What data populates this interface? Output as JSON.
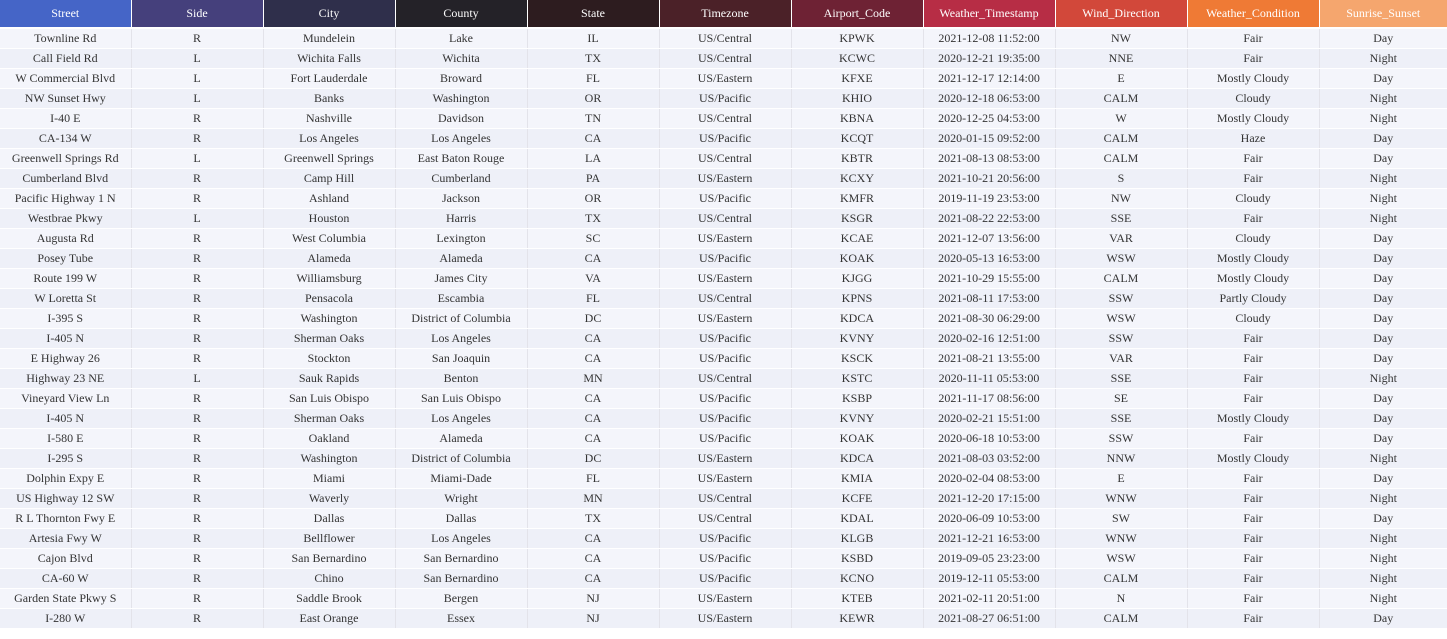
{
  "table": {
    "columns": [
      {
        "label": "Street",
        "color": "#4565c7"
      },
      {
        "label": "Side",
        "color": "#45407c"
      },
      {
        "label": "City",
        "color": "#2f2f4b"
      },
      {
        "label": "County",
        "color": "#242228"
      },
      {
        "label": "State",
        "color": "#2d1c1f"
      },
      {
        "label": "Timezone",
        "color": "#4b2128"
      },
      {
        "label": "Airport_Code",
        "color": "#6e2234"
      },
      {
        "label": "Weather_Timestamp",
        "color": "#b72d45"
      },
      {
        "label": "Wind_Direction",
        "color": "#d2483a"
      },
      {
        "label": "Weather_Condition",
        "color": "#ef7a35"
      },
      {
        "label": "Sunrise_Sunset",
        "color": "#f5a66e"
      }
    ],
    "rows": [
      [
        "Townline Rd",
        "R",
        "Mundelein",
        "Lake",
        "IL",
        "US/Central",
        "KPWK",
        "2021-12-08 11:52:00",
        "NW",
        "Fair",
        "Day"
      ],
      [
        "Call Field Rd",
        "L",
        "Wichita Falls",
        "Wichita",
        "TX",
        "US/Central",
        "KCWC",
        "2020-12-21 19:35:00",
        "NNE",
        "Fair",
        "Night"
      ],
      [
        "W Commercial Blvd",
        "L",
        "Fort Lauderdale",
        "Broward",
        "FL",
        "US/Eastern",
        "KFXE",
        "2021-12-17 12:14:00",
        "E",
        "Mostly Cloudy",
        "Day"
      ],
      [
        "NW Sunset Hwy",
        "L",
        "Banks",
        "Washington",
        "OR",
        "US/Pacific",
        "KHIO",
        "2020-12-18 06:53:00",
        "CALM",
        "Cloudy",
        "Night"
      ],
      [
        "I-40 E",
        "R",
        "Nashville",
        "Davidson",
        "TN",
        "US/Central",
        "KBNA",
        "2020-12-25 04:53:00",
        "W",
        "Mostly Cloudy",
        "Night"
      ],
      [
        "CA-134 W",
        "R",
        "Los Angeles",
        "Los Angeles",
        "CA",
        "US/Pacific",
        "KCQT",
        "2020-01-15 09:52:00",
        "CALM",
        "Haze",
        "Day"
      ],
      [
        "Greenwell Springs Rd",
        "L",
        "Greenwell Springs",
        "East Baton Rouge",
        "LA",
        "US/Central",
        "KBTR",
        "2021-08-13 08:53:00",
        "CALM",
        "Fair",
        "Day"
      ],
      [
        "Cumberland Blvd",
        "R",
        "Camp Hill",
        "Cumberland",
        "PA",
        "US/Eastern",
        "KCXY",
        "2021-10-21 20:56:00",
        "S",
        "Fair",
        "Night"
      ],
      [
        "Pacific Highway 1 N",
        "R",
        "Ashland",
        "Jackson",
        "OR",
        "US/Pacific",
        "KMFR",
        "2019-11-19 23:53:00",
        "NW",
        "Cloudy",
        "Night"
      ],
      [
        "Westbrae Pkwy",
        "L",
        "Houston",
        "Harris",
        "TX",
        "US/Central",
        "KSGR",
        "2021-08-22 22:53:00",
        "SSE",
        "Fair",
        "Night"
      ],
      [
        "Augusta Rd",
        "R",
        "West Columbia",
        "Lexington",
        "SC",
        "US/Eastern",
        "KCAE",
        "2021-12-07 13:56:00",
        "VAR",
        "Cloudy",
        "Day"
      ],
      [
        "Posey Tube",
        "R",
        "Alameda",
        "Alameda",
        "CA",
        "US/Pacific",
        "KOAK",
        "2020-05-13 16:53:00",
        "WSW",
        "Mostly Cloudy",
        "Day"
      ],
      [
        "Route 199 W",
        "R",
        "Williamsburg",
        "James City",
        "VA",
        "US/Eastern",
        "KJGG",
        "2021-10-29 15:55:00",
        "CALM",
        "Mostly Cloudy",
        "Day"
      ],
      [
        "W Loretta St",
        "R",
        "Pensacola",
        "Escambia",
        "FL",
        "US/Central",
        "KPNS",
        "2021-08-11 17:53:00",
        "SSW",
        "Partly Cloudy",
        "Day"
      ],
      [
        "I-395 S",
        "R",
        "Washington",
        "District of Columbia",
        "DC",
        "US/Eastern",
        "KDCA",
        "2021-08-30 06:29:00",
        "WSW",
        "Cloudy",
        "Day"
      ],
      [
        "I-405 N",
        "R",
        "Sherman Oaks",
        "Los Angeles",
        "CA",
        "US/Pacific",
        "KVNY",
        "2020-02-16 12:51:00",
        "SSW",
        "Fair",
        "Day"
      ],
      [
        "E Highway 26",
        "R",
        "Stockton",
        "San Joaquin",
        "CA",
        "US/Pacific",
        "KSCK",
        "2021-08-21 13:55:00",
        "VAR",
        "Fair",
        "Day"
      ],
      [
        "Highway 23 NE",
        "L",
        "Sauk Rapids",
        "Benton",
        "MN",
        "US/Central",
        "KSTC",
        "2020-11-11 05:53:00",
        "SSE",
        "Fair",
        "Night"
      ],
      [
        "Vineyard View Ln",
        "R",
        "San Luis Obispo",
        "San Luis Obispo",
        "CA",
        "US/Pacific",
        "KSBP",
        "2021-11-17 08:56:00",
        "SE",
        "Fair",
        "Day"
      ],
      [
        "I-405 N",
        "R",
        "Sherman Oaks",
        "Los Angeles",
        "CA",
        "US/Pacific",
        "KVNY",
        "2020-02-21 15:51:00",
        "SSE",
        "Mostly Cloudy",
        "Day"
      ],
      [
        "I-580 E",
        "R",
        "Oakland",
        "Alameda",
        "CA",
        "US/Pacific",
        "KOAK",
        "2020-06-18 10:53:00",
        "SSW",
        "Fair",
        "Day"
      ],
      [
        "I-295 S",
        "R",
        "Washington",
        "District of Columbia",
        "DC",
        "US/Eastern",
        "KDCA",
        "2021-08-03 03:52:00",
        "NNW",
        "Mostly Cloudy",
        "Night"
      ],
      [
        "Dolphin Expy E",
        "R",
        "Miami",
        "Miami-Dade",
        "FL",
        "US/Eastern",
        "KMIA",
        "2020-02-04 08:53:00",
        "E",
        "Fair",
        "Day"
      ],
      [
        "US Highway 12 SW",
        "R",
        "Waverly",
        "Wright",
        "MN",
        "US/Central",
        "KCFE",
        "2021-12-20 17:15:00",
        "WNW",
        "Fair",
        "Night"
      ],
      [
        "R L Thornton Fwy E",
        "R",
        "Dallas",
        "Dallas",
        "TX",
        "US/Central",
        "KDAL",
        "2020-06-09 10:53:00",
        "SW",
        "Fair",
        "Day"
      ],
      [
        "Artesia Fwy W",
        "R",
        "Bellflower",
        "Los Angeles",
        "CA",
        "US/Pacific",
        "KLGB",
        "2021-12-21 16:53:00",
        "WNW",
        "Fair",
        "Night"
      ],
      [
        "Cajon Blvd",
        "R",
        "San Bernardino",
        "San Bernardino",
        "CA",
        "US/Pacific",
        "KSBD",
        "2019-09-05 23:23:00",
        "WSW",
        "Fair",
        "Night"
      ],
      [
        "CA-60 W",
        "R",
        "Chino",
        "San Bernardino",
        "CA",
        "US/Pacific",
        "KCNO",
        "2019-12-11 05:53:00",
        "CALM",
        "Fair",
        "Night"
      ],
      [
        "Garden State Pkwy S",
        "R",
        "Saddle Brook",
        "Bergen",
        "NJ",
        "US/Eastern",
        "KTEB",
        "2021-02-11 20:51:00",
        "N",
        "Fair",
        "Night"
      ],
      [
        "I-280 W",
        "R",
        "East Orange",
        "Essex",
        "NJ",
        "US/Eastern",
        "KEWR",
        "2021-08-27 06:51:00",
        "CALM",
        "Fair",
        "Day"
      ]
    ]
  }
}
